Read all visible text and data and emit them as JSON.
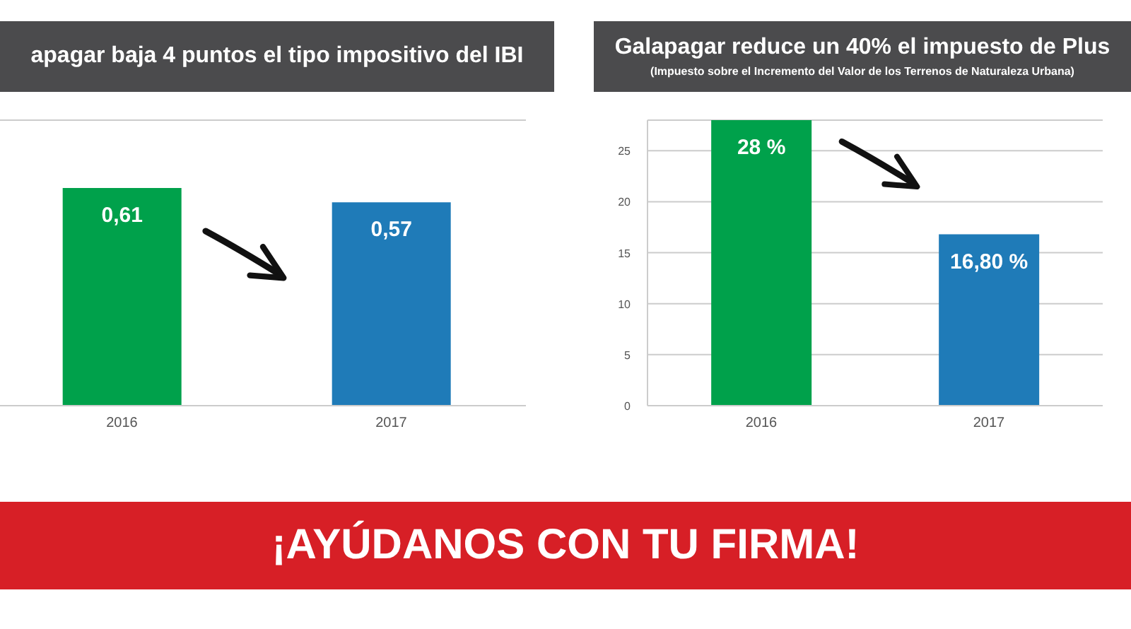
{
  "chart_data": [
    {
      "type": "bar",
      "title": "apagar baja 4 puntos el tipo impositivo del IBI",
      "categories": [
        "2016",
        "2017"
      ],
      "values": [
        0.61,
        0.57
      ],
      "colors": [
        "#00a14b",
        "#1f7bb8"
      ],
      "value_labels": [
        "0,61",
        "0,57"
      ],
      "grid": "y",
      "tick_labels": "x"
    },
    {
      "type": "bar",
      "title": "Galapagar reduce un 40% el impuesto de Plus",
      "subtitle": "(Impuesto sobre el Incremento del Valor de los Terrenos de Naturaleza Urbana)",
      "categories": [
        "2016",
        "2017"
      ],
      "values": [
        28,
        16.8
      ],
      "colors": [
        "#00a14b",
        "#1f7bb8"
      ],
      "value_labels": [
        "28 %",
        "16,80 %"
      ],
      "ylim": [
        0,
        28
      ],
      "yticks": [
        0,
        5,
        10,
        15,
        20,
        25
      ],
      "grid": "y"
    },
    {
      "type": "other",
      "title": "¡AYÚDANOS CON TU FIRMA!"
    }
  ]
}
